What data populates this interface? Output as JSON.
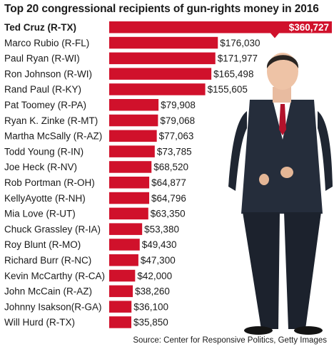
{
  "chart_data": {
    "type": "bar",
    "orientation": "horizontal",
    "title": "Top 20 congressional recipients of gun-rights money in 2016",
    "categories": [
      "Ted Cruz (R-TX)",
      "Marco Rubio (R-FL)",
      "Paul Ryan (R-WI)",
      "Ron Johnson (R-WI)",
      "Rand Paul (R-KY)",
      "Pat Toomey (R-PA)",
      "Ryan K. Zinke (R-MT)",
      "Martha McSally (R-AZ)",
      "Todd Young (R-IN)",
      "Joe Heck (R-NV)",
      "Rob Portman (R-OH)",
      "KellyAyotte (R-NH)",
      "Mia Love (R-UT)",
      "Chuck Grassley (R-IA)",
      "Roy Blunt (R-MO)",
      "Richard Burr (R-NC)",
      "Kevin McCarthy (R-CA)",
      "John McCain (R-AZ)",
      "Johnny  Isakson(R-GA)",
      "Will Hurd (R-TX)"
    ],
    "values": [
      360727,
      176030,
      171977,
      165498,
      155605,
      79908,
      79068,
      77063,
      73785,
      68520,
      64877,
      64796,
      63350,
      53380,
      49430,
      47300,
      42000,
      38260,
      36100,
      35850
    ],
    "value_labels": [
      "$360,727",
      "$176,030",
      "$171,977",
      "$165,498",
      "$155,605",
      "$79,908",
      "$79,068",
      "$77,063",
      "$73,785",
      "$68,520",
      "$64,877",
      "$64,796",
      "$63,350",
      "$53,380",
      "$49,430",
      "$47,300",
      "$42,000",
      "$38,260",
      "$36,100",
      "$35,850"
    ],
    "bar_color": "#d0112b",
    "grid": false,
    "legend": "none"
  },
  "source": "Source: Center for Responsive Politics, Getty Images"
}
